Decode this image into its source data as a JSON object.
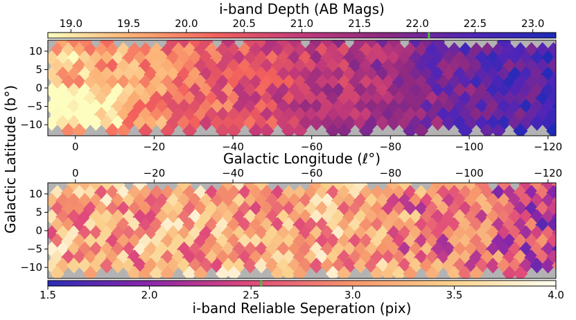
{
  "figure": {
    "ylabel": "Galactic Latitude ($b$°)",
    "ylabel_text": "Galactic Latitude (b°)"
  },
  "chart_data": [
    {
      "type": "heatmap",
      "title": "",
      "colorbar": {
        "label": "i-band Depth (AB Mags)",
        "position": "top",
        "range": [
          18.8,
          23.2
        ],
        "ticks": [
          "19.0",
          "19.5",
          "20.0",
          "20.5",
          "21.0",
          "21.5",
          "22.0",
          "22.5",
          "23.0"
        ],
        "tick_values": [
          19.0,
          19.5,
          20.0,
          20.5,
          21.0,
          21.5,
          22.0,
          22.5,
          23.0
        ],
        "marker": 22.1,
        "colormap": "magma_r",
        "colors": [
          "#fcfdbf",
          "#fcb074",
          "#f2605c",
          "#c1397a",
          "#8b2982",
          "#4f25b8",
          "#1c2bb8"
        ]
      },
      "xlabel": "Galactic Longitude (ℓ°)",
      "xlim": [
        7,
        -122
      ],
      "xticks": [
        "0",
        "−20",
        "−40",
        "−60",
        "−80",
        "−100",
        "−120"
      ],
      "xtick_values": [
        0,
        -20,
        -40,
        -60,
        -80,
        -100,
        -120
      ],
      "ylim": [
        -13,
        13
      ],
      "yticks": [
        "10",
        "5",
        "0",
        "−5",
        "−10"
      ],
      "ytick_values": [
        10,
        5,
        0,
        -5,
        -10
      ],
      "missing_color": "#b3b3b3",
      "trend": "depth ~19 (bright) near l=0 to ~22.8 (deep) toward l=-120"
    },
    {
      "type": "heatmap",
      "title": "",
      "colorbar": {
        "label": "i-band Reliable Seperation (pix)",
        "position": "bottom",
        "range": [
          1.5,
          4.0
        ],
        "ticks": [
          "1.5",
          "2.0",
          "2.5",
          "3.0",
          "3.5",
          "4.0"
        ],
        "tick_values": [
          1.5,
          2.0,
          2.5,
          3.0,
          3.5,
          4.0
        ],
        "marker": 2.55,
        "colormap": "plasma-like",
        "colors": [
          "#2b2cb8",
          "#8a26a8",
          "#e04a7a",
          "#f6956c",
          "#fbd38f",
          "#fffef0"
        ]
      },
      "xlabel": "",
      "xlim": [
        7,
        -122
      ],
      "xticks": [
        "0",
        "−20",
        "−40",
        "−60",
        "−80",
        "−100",
        "−120"
      ],
      "xtick_values": [
        0,
        -20,
        -40,
        -60,
        -80,
        -100,
        -120
      ],
      "ylim": [
        -13,
        13
      ],
      "yticks": [
        "10",
        "5",
        "0",
        "−5",
        "−10"
      ],
      "ytick_values": [
        10,
        5,
        0,
        -5,
        -10
      ],
      "missing_color": "#b3b3b3",
      "trend": "separation mostly 2.5–3.5 pix, lower (~2.0) toward l=-100 to -120"
    }
  ]
}
